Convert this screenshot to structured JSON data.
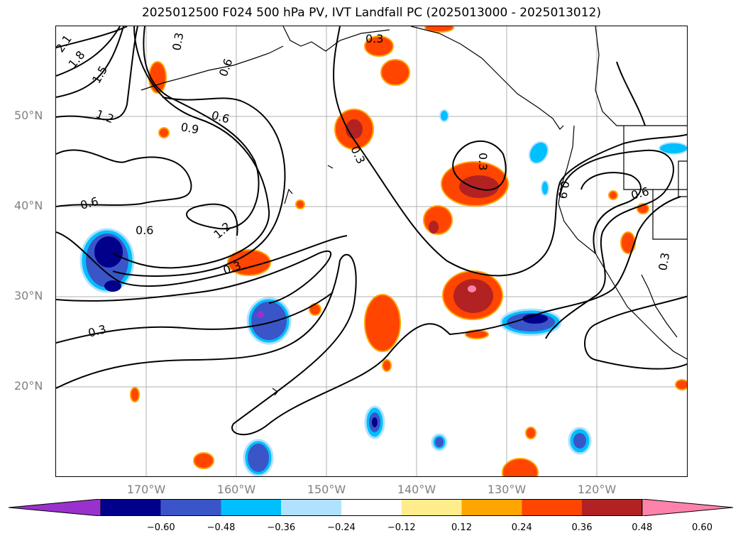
{
  "title": "2025012500 F024 500 hPa PV, IVT Landfall PC (2025013000 - 2025013012)",
  "axes": {
    "lat_labels": [
      "50°N",
      "40°N",
      "30°N",
      "20°N"
    ],
    "lon_labels": [
      "170°W",
      "160°W",
      "150°W",
      "140°W",
      "130°W",
      "120°W"
    ],
    "grid": true
  },
  "contour_labels": [
    "2.1",
    "1.8",
    "1.5",
    "1.2",
    "0.9",
    "0.6",
    "0.6",
    "0.6",
    "1.2",
    "0.3",
    "0.3",
    "0.3",
    "0.3",
    "0.3",
    "0.6",
    "0.3",
    "0.9",
    "0.6",
    "0.3"
  ],
  "colorbar": {
    "extend": "both",
    "ticks": [
      "−0.60",
      "−0.48",
      "−0.36",
      "−0.24",
      "−0.12",
      "0.12",
      "0.24",
      "0.36",
      "0.48",
      "0.60"
    ],
    "colors": [
      "#9932cc",
      "#00008b",
      "#3a55c8",
      "#00bfff",
      "#b0e2ff",
      "#ffffff",
      "#ffec8b",
      "#ffa500",
      "#ff4500",
      "#b22222",
      "#ff82ab"
    ]
  }
}
